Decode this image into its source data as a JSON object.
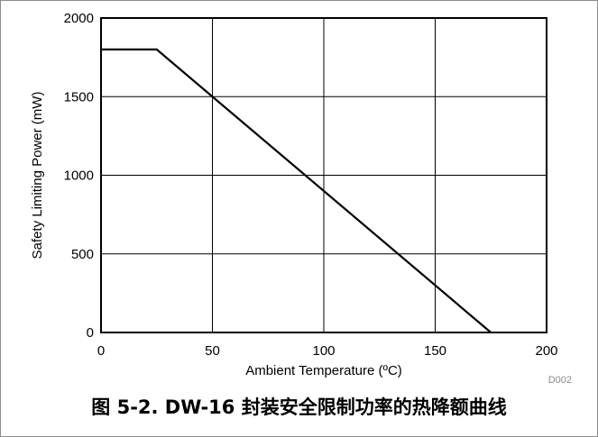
{
  "chart_data": {
    "type": "line",
    "xlabel": "Ambient Temperature (ºC)",
    "ylabel": "Safety Limiting Power (mW)",
    "xlim": [
      0,
      200
    ],
    "ylim": [
      0,
      2000
    ],
    "x_ticks": [
      "0",
      "50",
      "100",
      "150",
      "200"
    ],
    "y_ticks": [
      "0",
      "500",
      "1000",
      "1500",
      "2000"
    ],
    "grid": true,
    "series": [
      {
        "x": [
          0,
          25,
          175
        ],
        "y": [
          1800,
          1800,
          0
        ],
        "color": "#000000"
      }
    ],
    "figure_id": "D002"
  },
  "caption": "图 5-2. DW-16 封装安全限制功率的热降额曲线"
}
